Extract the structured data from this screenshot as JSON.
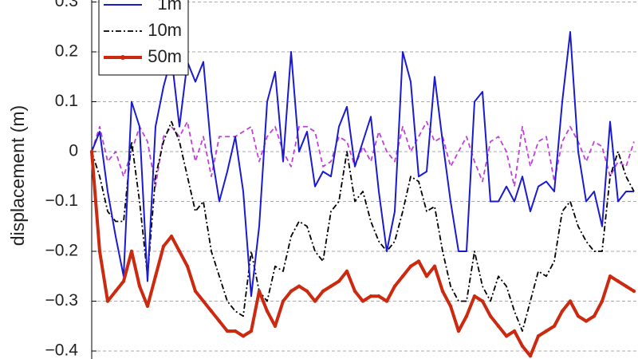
{
  "chart_data": {
    "type": "line",
    "y_label": "displacement (m)",
    "x": [
      0,
      1,
      2,
      3,
      4,
      5,
      6,
      7,
      8,
      9,
      10,
      11,
      12,
      13,
      14,
      15,
      16,
      17,
      18,
      19,
      20,
      21,
      22,
      23,
      24,
      25,
      26,
      27,
      28,
      29,
      30,
      31,
      32,
      33,
      34,
      35,
      36,
      37,
      38,
      39,
      40,
      41,
      42,
      43,
      44,
      45,
      46,
      47,
      48,
      49,
      50,
      51,
      52,
      53,
      54,
      55,
      56,
      57,
      58,
      59,
      60,
      61,
      62,
      63,
      64,
      65,
      66,
      67,
      68
    ],
    "xlim": [
      0,
      68.5
    ],
    "ylim": [
      -0.4,
      0.3
    ],
    "yticks": [
      0.3,
      0.2,
      0.1,
      0,
      {
        "value": -0.1,
        "label": "−0.1"
      },
      {
        "value": -0.2,
        "label": "−0.2"
      },
      {
        "value": -0.3,
        "label": "−0.3"
      },
      {
        "value": -0.4,
        "label": "−0.4"
      }
    ],
    "grid": true,
    "legend": "upper left",
    "series": [
      {
        "name": "1m",
        "color": "#1a1ad0",
        "style": "solid",
        "values": [
          0,
          0.04,
          -0.08,
          -0.17,
          -0.25,
          0.1,
          0.05,
          -0.26,
          0.05,
          0.13,
          0.19,
          0.05,
          0.18,
          0.14,
          0.18,
          0.0,
          -0.1,
          -0.04,
          0.03,
          -0.08,
          -0.29,
          -0.15,
          0.1,
          0.16,
          -0.02,
          0.2,
          0.0,
          0.04,
          -0.07,
          -0.04,
          -0.05,
          0.05,
          0.09,
          -0.03,
          0.02,
          0.07,
          -0.08,
          -0.2,
          -0.12,
          0.2,
          0.14,
          -0.05,
          -0.04,
          0.15,
          0.02,
          -0.1,
          -0.2,
          -0.2,
          0.1,
          0.12,
          -0.1,
          -0.1,
          -0.07,
          -0.1,
          -0.05,
          -0.12,
          -0.07,
          -0.06,
          -0.08,
          0.1,
          0.24,
          0.0,
          -0.1,
          -0.08,
          -0.15,
          0.06,
          -0.1,
          -0.08,
          -0.08
        ]
      },
      {
        "name": "10m",
        "color": "#000000",
        "style": "dashdot",
        "values": [
          0,
          -0.05,
          -0.12,
          -0.14,
          -0.14,
          0.02,
          -0.1,
          -0.25,
          -0.05,
          0.02,
          0.06,
          0.02,
          -0.05,
          -0.12,
          -0.1,
          -0.2,
          -0.25,
          -0.3,
          -0.32,
          -0.33,
          -0.2,
          -0.28,
          -0.3,
          -0.23,
          -0.24,
          -0.17,
          -0.14,
          -0.15,
          -0.2,
          -0.22,
          -0.12,
          -0.1,
          0.0,
          -0.1,
          -0.08,
          -0.14,
          -0.18,
          -0.2,
          -0.18,
          -0.12,
          -0.05,
          -0.06,
          -0.12,
          -0.11,
          -0.2,
          -0.27,
          -0.3,
          -0.3,
          -0.2,
          -0.27,
          -0.3,
          -0.25,
          -0.27,
          -0.32,
          -0.36,
          -0.3,
          -0.24,
          -0.25,
          -0.22,
          -0.12,
          -0.1,
          -0.15,
          -0.18,
          -0.2,
          -0.2,
          -0.05,
          0.0,
          -0.05,
          -0.08
        ]
      },
      {
        "name": "50m",
        "color": "#cc2a10",
        "style": "thick",
        "values": [
          0,
          -0.2,
          -0.3,
          -0.28,
          -0.26,
          -0.2,
          -0.27,
          -0.31,
          -0.25,
          -0.19,
          -0.17,
          -0.2,
          -0.23,
          -0.28,
          -0.3,
          -0.32,
          -0.34,
          -0.36,
          -0.36,
          -0.37,
          -0.36,
          -0.28,
          -0.32,
          -0.35,
          -0.3,
          -0.28,
          -0.27,
          -0.28,
          -0.3,
          -0.28,
          -0.27,
          -0.26,
          -0.24,
          -0.28,
          -0.3,
          -0.29,
          -0.29,
          -0.3,
          -0.27,
          -0.25,
          -0.23,
          -0.22,
          -0.25,
          -0.23,
          -0.28,
          -0.31,
          -0.36,
          -0.33,
          -0.29,
          -0.3,
          -0.33,
          -0.35,
          -0.37,
          -0.36,
          -0.39,
          -0.41,
          -0.37,
          -0.36,
          -0.35,
          -0.32,
          -0.3,
          -0.33,
          -0.34,
          -0.33,
          -0.3,
          -0.25,
          -0.26,
          -0.27,
          -0.28
        ]
      },
      {
        "color": "#c040d8",
        "style": "dashed",
        "values": [
          0,
          0.05,
          -0.02,
          0.0,
          -0.05,
          0.0,
          0.05,
          0.02,
          -0.07,
          0.03,
          0.05,
          0.03,
          0.06,
          -0.02,
          0.03,
          -0.05,
          0.03,
          0.03,
          0.03,
          0.04,
          0.05,
          -0.02,
          0.03,
          0.05,
          0.0,
          -0.03,
          0.05,
          0.05,
          0.04,
          -0.03,
          -0.02,
          0.03,
          0.02,
          -0.03,
          0.01,
          -0.02,
          0.04,
          0.0,
          -0.02,
          0.05,
          0.0,
          0.03,
          0.06,
          0.02,
          0.03,
          -0.03,
          0.0,
          0.03,
          -0.02,
          -0.06,
          0.02,
          0.03,
          0.0,
          -0.07,
          0.05,
          -0.03,
          0.02,
          0.03,
          -0.06,
          0.02,
          0.05,
          0.02,
          -0.02,
          0.02,
          0.01,
          -0.05,
          -0.02,
          -0.03,
          0.02
        ]
      }
    ]
  }
}
